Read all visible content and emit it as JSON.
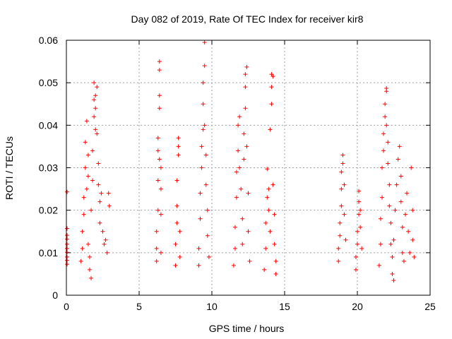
{
  "chart_data": {
    "type": "scatter",
    "title": "Day 082 of 2019, Rate Of TEC Index for receiver kir8",
    "xlabel": "GPS time / hours",
    "ylabel": "ROTI / TECUs",
    "xlim": [
      0,
      25
    ],
    "ylim": [
      0,
      0.06
    ],
    "x_ticks": [
      0,
      5,
      10,
      15,
      20,
      25
    ],
    "x_tick_labels": [
      "0",
      "5",
      "10",
      "15",
      "20",
      "25"
    ],
    "y_ticks": [
      0,
      0.01,
      0.02,
      0.03,
      0.04,
      0.05,
      0.06
    ],
    "y_tick_labels": [
      "0",
      "0.01",
      "0.02",
      "0.03",
      "0.04",
      "0.05",
      "0.06"
    ],
    "grid": true,
    "marker": "plus",
    "color": "#ff0000",
    "series": [
      {
        "name": "ROTI",
        "points": [
          [
            0.05,
            0.0243
          ],
          [
            0.05,
            0.0157
          ],
          [
            0.05,
            0.0141
          ],
          [
            0.05,
            0.0132
          ],
          [
            0.05,
            0.012
          ],
          [
            0.05,
            0.011
          ],
          [
            0.05,
            0.0101
          ],
          [
            0.05,
            0.009
          ],
          [
            0.05,
            0.0082
          ],
          [
            0.05,
            0.0073
          ],
          [
            1.0,
            0.008
          ],
          [
            1.1,
            0.011
          ],
          [
            1.1,
            0.015
          ],
          [
            1.2,
            0.019
          ],
          [
            1.2,
            0.023
          ],
          [
            1.3,
            0.03
          ],
          [
            1.3,
            0.036
          ],
          [
            1.4,
            0.041
          ],
          [
            1.4,
            0.025
          ],
          [
            1.5,
            0.033
          ],
          [
            1.5,
            0.028
          ],
          [
            1.5,
            0.012
          ],
          [
            1.6,
            0.009
          ],
          [
            1.6,
            0.006
          ],
          [
            1.7,
            0.004
          ],
          [
            1.7,
            0.02
          ],
          [
            1.8,
            0.027
          ],
          [
            1.8,
            0.034
          ],
          [
            1.9,
            0.042
          ],
          [
            1.9,
            0.046
          ],
          [
            1.9,
            0.05
          ],
          [
            2.0,
            0.047
          ],
          [
            2.0,
            0.044
          ],
          [
            2.0,
            0.039
          ],
          [
            2.1,
            0.049
          ],
          [
            2.1,
            0.038
          ],
          [
            2.2,
            0.031
          ],
          [
            2.2,
            0.026
          ],
          [
            2.3,
            0.022
          ],
          [
            2.3,
            0.017
          ],
          [
            2.4,
            0.024
          ],
          [
            2.5,
            0.015
          ],
          [
            2.6,
            0.012
          ],
          [
            2.7,
            0.013
          ],
          [
            2.8,
            0.01
          ],
          [
            2.9,
            0.024
          ],
          [
            2.95,
            0.021
          ],
          [
            6.2,
            0.008
          ],
          [
            6.2,
            0.011
          ],
          [
            6.2,
            0.015
          ],
          [
            6.3,
            0.02
          ],
          [
            6.3,
            0.027
          ],
          [
            6.3,
            0.034
          ],
          [
            6.3,
            0.037
          ],
          [
            6.4,
            0.044
          ],
          [
            6.4,
            0.047
          ],
          [
            6.4,
            0.053
          ],
          [
            6.4,
            0.055
          ],
          [
            6.4,
            0.032
          ],
          [
            6.5,
            0.03
          ],
          [
            6.5,
            0.025
          ],
          [
            6.5,
            0.019
          ],
          [
            6.5,
            0.01
          ],
          [
            7.5,
            0.007
          ],
          [
            7.5,
            0.012
          ],
          [
            7.6,
            0.017
          ],
          [
            7.6,
            0.021
          ],
          [
            7.6,
            0.027
          ],
          [
            7.7,
            0.033
          ],
          [
            7.7,
            0.037
          ],
          [
            7.7,
            0.035
          ],
          [
            7.8,
            0.015
          ],
          [
            7.8,
            0.009
          ],
          [
            9.1,
            0.007
          ],
          [
            9.1,
            0.011
          ],
          [
            9.2,
            0.018
          ],
          [
            9.2,
            0.024
          ],
          [
            9.3,
            0.03
          ],
          [
            9.3,
            0.035
          ],
          [
            9.4,
            0.039
          ],
          [
            9.4,
            0.045
          ],
          [
            9.4,
            0.05
          ],
          [
            9.5,
            0.054
          ],
          [
            9.5,
            0.0595
          ],
          [
            9.5,
            0.04
          ],
          [
            9.6,
            0.033
          ],
          [
            9.6,
            0.026
          ],
          [
            9.7,
            0.02
          ],
          [
            9.7,
            0.014
          ],
          [
            9.8,
            0.009
          ],
          [
            11.5,
            0.007
          ],
          [
            11.6,
            0.011
          ],
          [
            11.6,
            0.016
          ],
          [
            11.7,
            0.023
          ],
          [
            11.7,
            0.029
          ],
          [
            11.8,
            0.034
          ],
          [
            11.8,
            0.04
          ],
          [
            11.9,
            0.042
          ],
          [
            11.9,
            0.03
          ],
          [
            12.0,
            0.025
          ],
          [
            12.1,
            0.018
          ],
          [
            12.1,
            0.012
          ],
          [
            12.2,
            0.032
          ],
          [
            12.2,
            0.038
          ],
          [
            12.3,
            0.044
          ],
          [
            12.3,
            0.049
          ],
          [
            12.3,
            0.052
          ],
          [
            12.4,
            0.0537
          ],
          [
            12.4,
            0.035
          ],
          [
            12.5,
            0.024
          ],
          [
            12.5,
            0.015
          ],
          [
            12.6,
            0.008
          ],
          [
            13.6,
            0.006
          ],
          [
            13.7,
            0.011
          ],
          [
            13.7,
            0.017
          ],
          [
            13.8,
            0.023
          ],
          [
            13.8,
            0.0297
          ],
          [
            13.9,
            0.025
          ],
          [
            13.9,
            0.02
          ],
          [
            14.0,
            0.015
          ],
          [
            14.0,
            0.039
          ],
          [
            14.1,
            0.045
          ],
          [
            14.1,
            0.049
          ],
          [
            14.1,
            0.052
          ],
          [
            14.2,
            0.0515
          ],
          [
            14.2,
            0.026
          ],
          [
            14.3,
            0.019
          ],
          [
            14.3,
            0.012
          ],
          [
            14.4,
            0.008
          ],
          [
            14.4,
            0.005
          ],
          [
            18.7,
            0.008
          ],
          [
            18.7,
            0.011
          ],
          [
            18.8,
            0.014
          ],
          [
            18.8,
            0.017
          ],
          [
            18.9,
            0.021
          ],
          [
            18.9,
            0.025
          ],
          [
            18.9,
            0.029
          ],
          [
            19.0,
            0.033
          ],
          [
            19.0,
            0.031
          ],
          [
            19.1,
            0.026
          ],
          [
            19.1,
            0.019
          ],
          [
            19.2,
            0.013
          ],
          [
            19.9,
            0.006
          ],
          [
            19.9,
            0.009
          ],
          [
            20.0,
            0.012
          ],
          [
            20.0,
            0.015
          ],
          [
            20.1,
            0.019
          ],
          [
            20.1,
            0.022
          ],
          [
            20.1,
            0.0245
          ],
          [
            20.2,
            0.02
          ],
          [
            20.2,
            0.016
          ],
          [
            20.3,
            0.011
          ],
          [
            21.5,
            0.007
          ],
          [
            21.6,
            0.012
          ],
          [
            21.6,
            0.018
          ],
          [
            21.7,
            0.023
          ],
          [
            21.7,
            0.03
          ],
          [
            21.8,
            0.034
          ],
          [
            21.8,
            0.038
          ],
          [
            21.9,
            0.042
          ],
          [
            21.9,
            0.045
          ],
          [
            22.0,
            0.048
          ],
          [
            22.0,
            0.0487
          ],
          [
            22.0,
            0.04
          ],
          [
            22.1,
            0.036
          ],
          [
            22.1,
            0.031
          ],
          [
            22.2,
            0.026
          ],
          [
            22.2,
            0.021
          ],
          [
            22.3,
            0.017
          ],
          [
            22.3,
            0.012
          ],
          [
            22.4,
            0.009
          ],
          [
            22.4,
            0.005
          ],
          [
            22.5,
            0.0035
          ],
          [
            22.5,
            0.013
          ],
          [
            22.6,
            0.02
          ],
          [
            22.7,
            0.026
          ],
          [
            22.8,
            0.032
          ],
          [
            22.9,
            0.035
          ],
          [
            23.0,
            0.028
          ],
          [
            23.0,
            0.022
          ],
          [
            23.1,
            0.016
          ],
          [
            23.1,
            0.01
          ],
          [
            23.2,
            0.008
          ],
          [
            23.3,
            0.019
          ],
          [
            23.4,
            0.024
          ],
          [
            23.5,
            0.015
          ],
          [
            23.6,
            0.01
          ],
          [
            23.7,
            0.03
          ],
          [
            23.8,
            0.02
          ],
          [
            23.8,
            0.013
          ],
          [
            23.9,
            0.009
          ]
        ]
      }
    ]
  }
}
